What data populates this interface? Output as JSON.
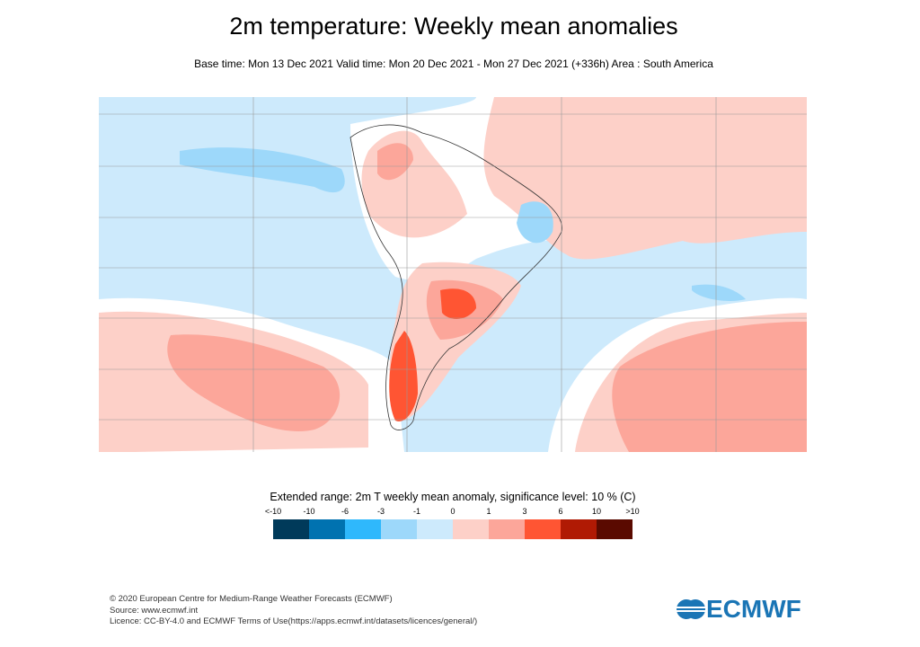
{
  "title": "2m temperature: Weekly mean anomalies",
  "subtitle": "Base time: Mon 13 Dec 2021 Valid time: Mon 20 Dec 2021 - Mon 27 Dec 2021 (+336h) Area : South America",
  "map": {
    "area": "South America",
    "colors": {
      "ocean_neg": "#cdeafc",
      "pos1": "#fdd0c8",
      "pos3": "#fca69a",
      "pos6": "#ff5533",
      "neg1": "#9dd8fa"
    }
  },
  "colorbar": {
    "title": "Extended range: 2m T weekly mean anomaly, significance level: 10 % (C)",
    "labels": [
      "<-10",
      "-10",
      "-6",
      "-3",
      "-1",
      "0",
      "1",
      "3",
      "6",
      "10",
      ">10"
    ],
    "colors": [
      "#003a5a",
      "#0072b0",
      "#2fb8fc",
      "#9dd8fa",
      "#cdeafc",
      "#fdd0c8",
      "#fca69a",
      "#ff5533",
      "#b01a04",
      "#5a0a00"
    ]
  },
  "footer": {
    "line1": "© 2020 European Centre for Medium-Range Weather Forecasts (ECMWF)",
    "line2": "Source: www.ecmwf.int",
    "line3": "Licence: CC-BY-4.0 and ECMWF Terms of Use(https://apps.ecmwf.int/datasets/licences/general/)"
  },
  "logo": {
    "text": "ECMWF"
  }
}
